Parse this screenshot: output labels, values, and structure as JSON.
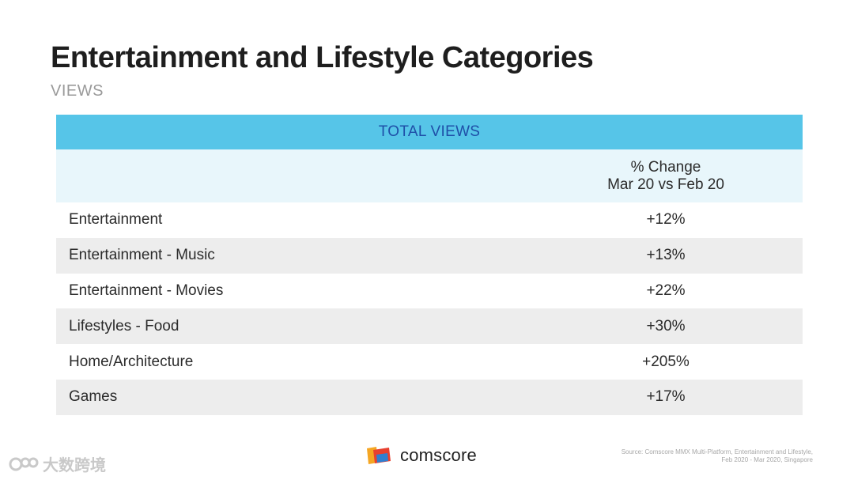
{
  "header": {
    "title": "Entertainment and Lifestyle Categories",
    "subtitle": "VIEWS"
  },
  "chart_data": {
    "type": "table",
    "title": "TOTAL VIEWS",
    "column_header_line1": "% Change",
    "column_header_line2": "Mar 20 vs Feb 20",
    "rows": [
      {
        "category": "Entertainment",
        "value": "+12%"
      },
      {
        "category": "Entertainment - Music",
        "value": "+13%"
      },
      {
        "category": "Entertainment - Movies",
        "value": "+22%"
      },
      {
        "category": "Lifestyles - Food",
        "value": "+30%"
      },
      {
        "category": "Home/Architecture",
        "value": "+205%"
      },
      {
        "category": "Games",
        "value": "+17%"
      }
    ]
  },
  "footer": {
    "logo_text": "comscore",
    "source_line1": "Source: Comscore MMX Multi-Platform, Entertainment and Lifestyle,",
    "source_line2": "Feb 2020 - Mar 2020, Singapore",
    "watermark_text": "大数跨境"
  },
  "colors": {
    "header_bg": "#56c5e8",
    "header_text": "#1f4fa8",
    "subheader_bg": "#e8f6fb",
    "alt_row_bg": "#ededed"
  }
}
